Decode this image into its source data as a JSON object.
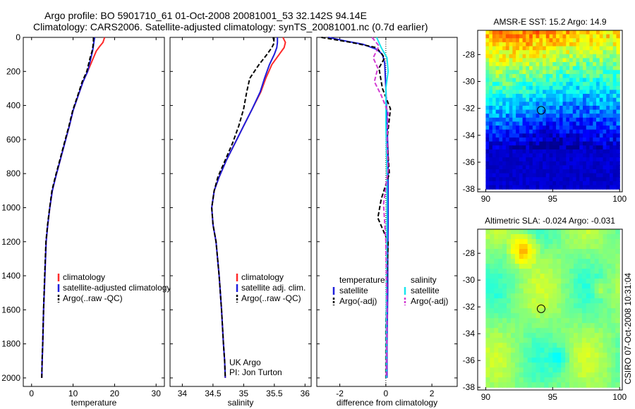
{
  "header": {
    "line1": "Argo profile: BO 5901710_61 01-Oct-2008 20081001_53 32.142S 94.14E",
    "line2": "Climatology: CARS2006. Satellite-adjusted climatology: synTS_20081001.nc (0.7d earlier)"
  },
  "colors": {
    "climatology": "#ff2a2a",
    "satellite": "#1f1fdc",
    "argo": "#000000",
    "sal_satellite": "#18e6ee",
    "sal_argo": "#d23cd2"
  },
  "credit": "UK Argo",
  "pi": "PI: Jon Turton",
  "stamp": "CSIRO 07-Oct-2008 10:31:04",
  "chart_data": [
    {
      "id": "temperature",
      "type": "line",
      "xlabel": "temperature",
      "ylabel": "",
      "xlim": [
        -2,
        32
      ],
      "ylim": [
        2050,
        0
      ],
      "xticks": [
        "0",
        "10",
        "20",
        "30"
      ],
      "xtick_values": [
        0,
        10,
        20,
        30
      ],
      "yticks": [
        "0",
        "200",
        "400",
        "600",
        "800",
        "1000",
        "1200",
        "1400",
        "1600",
        "1800",
        "2000"
      ],
      "ytick_values": [
        0,
        200,
        400,
        600,
        800,
        1000,
        1200,
        1400,
        1600,
        1800,
        2000
      ],
      "legend": [
        "climatology",
        "satellite-adjusted climatology",
        "Argo(..raw -QC)"
      ],
      "series": [
        {
          "name": "climatology",
          "color": "climatology",
          "dash": false,
          "x": [
            17.6,
            17.2,
            16.5,
            15.6,
            14.9,
            13.5,
            12.4,
            11.1,
            10.0,
            9.1,
            8.0,
            6.9,
            5.8,
            5.0,
            4.4,
            3.9,
            3.5,
            3.2,
            2.9,
            2.7,
            2.55,
            2.45
          ],
          "y": [
            0,
            30,
            50,
            80,
            120,
            200,
            260,
            350,
            430,
            520,
            620,
            720,
            820,
            900,
            1000,
            1100,
            1200,
            1400,
            1600,
            1800,
            1900,
            2000
          ]
        },
        {
          "name": "satellite-adjusted climatology",
          "color": "satellite",
          "dash": false,
          "x": [
            15.2,
            15.0,
            14.9,
            14.7,
            14.3,
            13.5,
            12.4,
            11.1,
            10.0,
            9.1,
            8.0,
            6.9,
            5.8,
            5.0,
            4.4,
            3.9,
            3.5,
            3.2,
            2.9,
            2.7,
            2.55,
            2.45
          ],
          "y": [
            0,
            30,
            50,
            80,
            120,
            200,
            260,
            350,
            430,
            520,
            620,
            720,
            820,
            900,
            1000,
            1100,
            1200,
            1400,
            1600,
            1800,
            1900,
            2000
          ]
        },
        {
          "name": "Argo(..raw -QC)",
          "color": "argo",
          "dash": true,
          "x": [
            14.9,
            14.9,
            14.8,
            14.6,
            14.1,
            13.3,
            12.2,
            11.0,
            9.9,
            9.0,
            7.9,
            6.8,
            5.7,
            4.9,
            4.35,
            3.85,
            3.45,
            3.15,
            2.88,
            2.68,
            2.53,
            2.45
          ],
          "y": [
            0,
            30,
            50,
            80,
            120,
            200,
            260,
            350,
            430,
            520,
            620,
            720,
            820,
            900,
            1000,
            1100,
            1200,
            1400,
            1600,
            1800,
            1900,
            2000
          ]
        }
      ]
    },
    {
      "id": "salinity",
      "type": "line",
      "xlabel": "salinity",
      "ylabel": "",
      "xlim": [
        33.8,
        36.1
      ],
      "ylim": [
        2050,
        0
      ],
      "xticks": [
        "34",
        "34.5",
        "35",
        "35.5",
        "36"
      ],
      "xtick_values": [
        34,
        34.5,
        35,
        35.5,
        36
      ],
      "legend": [
        "climatology",
        "satellite adj. clim.",
        "Argo(..raw -QC)"
      ],
      "series": [
        {
          "name": "climatology",
          "color": "climatology",
          "dash": false,
          "x": [
            35.64,
            35.68,
            35.66,
            35.58,
            35.46,
            35.36,
            35.28,
            35.14,
            35.0,
            34.86,
            34.72,
            34.6,
            34.52,
            34.48,
            34.5,
            34.55,
            34.6,
            34.64,
            34.67,
            34.69,
            34.7
          ],
          "y": [
            0,
            30,
            60,
            100,
            160,
            240,
            320,
            420,
            520,
            620,
            720,
            820,
            900,
            1000,
            1100,
            1200,
            1400,
            1600,
            1800,
            1900,
            2000
          ]
        },
        {
          "name": "satellite adj. clim.",
          "color": "satellite",
          "dash": false,
          "x": [
            35.55,
            35.55,
            35.54,
            35.5,
            35.42,
            35.34,
            35.27,
            35.14,
            35.0,
            34.86,
            34.72,
            34.6,
            34.52,
            34.48,
            34.5,
            34.55,
            34.6,
            34.64,
            34.67,
            34.69,
            34.7
          ],
          "y": [
            0,
            30,
            60,
            100,
            160,
            240,
            320,
            420,
            520,
            620,
            720,
            820,
            900,
            1000,
            1100,
            1200,
            1400,
            1600,
            1800,
            1900,
            2000
          ]
        },
        {
          "name": "Argo(..raw -QC)",
          "color": "argo",
          "dash": true,
          "x": [
            35.48,
            35.5,
            35.46,
            35.38,
            35.25,
            35.1,
            35.05,
            35.0,
            34.92,
            34.82,
            34.7,
            34.58,
            34.52,
            34.48,
            34.5,
            34.55,
            34.6,
            34.64,
            34.67,
            34.69,
            34.7
          ],
          "y": [
            0,
            30,
            60,
            100,
            160,
            240,
            320,
            420,
            520,
            620,
            720,
            820,
            900,
            1000,
            1100,
            1200,
            1400,
            1600,
            1800,
            1900,
            2000
          ]
        }
      ]
    },
    {
      "id": "difference",
      "type": "line",
      "xlabel": "difference from climatology",
      "ylabel": "",
      "xlim": [
        -3.0,
        3.1
      ],
      "ylim": [
        2050,
        0
      ],
      "xticks": [
        "-2",
        "0",
        "2"
      ],
      "xtick_values": [
        -2,
        0,
        2
      ],
      "legend_temp": [
        "temperature",
        "satellite",
        "Argo(-adj)"
      ],
      "legend_sal": [
        "salinity",
        "satellite",
        "Argo(-adj)"
      ],
      "series": [
        {
          "name": "temperature satellite",
          "color": "satellite",
          "dash": false,
          "x": [
            -2.5,
            -1.8,
            -1.0,
            -0.4,
            -0.15,
            -0.05,
            0.0,
            0.05,
            0.1,
            0.1,
            0.1,
            0.08,
            0.08,
            0.05,
            0.05
          ],
          "y": [
            0,
            20,
            40,
            70,
            100,
            150,
            300,
            500,
            700,
            900,
            1100,
            1300,
            1500,
            1800,
            2000
          ]
        },
        {
          "name": "temperature Argo(-adj)",
          "color": "argo",
          "dash": true,
          "x": [
            -2.8,
            -1.5,
            -0.4,
            -0.05,
            -0.3,
            -0.15,
            0.2,
            0.05,
            0.15,
            -0.2,
            -0.35,
            0.1,
            0.05,
            0.0,
            0.0
          ],
          "y": [
            0,
            30,
            60,
            120,
            180,
            300,
            420,
            600,
            800,
            950,
            1060,
            1200,
            1400,
            1700,
            2000
          ]
        },
        {
          "name": "salinity satellite",
          "color": "sal_satellite",
          "dash": false,
          "x": [
            -0.4,
            -0.2,
            0.05,
            0.1,
            0.0,
            0.0,
            0.05,
            0.05,
            0.03,
            0.02,
            0.02
          ],
          "y": [
            0,
            60,
            120,
            200,
            300,
            500,
            800,
            1100,
            1400,
            1700,
            2000
          ]
        },
        {
          "name": "salinity Argo(-adj)",
          "color": "sal_argo",
          "dash": true,
          "x": [
            -0.6,
            -0.3,
            -0.55,
            -0.35,
            -0.5,
            -0.2,
            0.1,
            0.05,
            0.1,
            -0.1,
            0.0,
            0.05,
            0.02
          ],
          "y": [
            0,
            50,
            120,
            180,
            260,
            340,
            440,
            600,
            780,
            980,
            1200,
            1600,
            2000
          ]
        }
      ]
    },
    {
      "id": "sst_map",
      "type": "heatmap",
      "title": "AMSR-E SST: 15.2 Argo: 14.9",
      "xlim": [
        89.4,
        100.2
      ],
      "ylim": [
        -38.2,
        -26.2
      ],
      "xticks": [
        "90",
        "95",
        "100"
      ],
      "xtick_values": [
        90,
        95,
        100
      ],
      "yticks": [
        "-28",
        "-30",
        "-32",
        "-34",
        "-36",
        "-38"
      ],
      "ytick_values": [
        -28,
        -30,
        -32,
        -34,
        -36,
        -38
      ],
      "data_xrange": [
        90,
        100
      ],
      "data_yrange": [
        -38,
        -26.2
      ],
      "marker": {
        "lon": 94.14,
        "lat": -32.142
      }
    },
    {
      "id": "sla_map",
      "type": "heatmap",
      "title": "Altimetric SLA: -0.024 Argo: -0.031",
      "xlim": [
        89.4,
        100.2
      ],
      "ylim": [
        -38.2,
        -26.2
      ],
      "xticks": [
        "90",
        "95",
        "100"
      ],
      "xtick_values": [
        90,
        95,
        100
      ],
      "yticks": [
        "-28",
        "-30",
        "-32",
        "-34",
        "-36",
        "-38"
      ],
      "ytick_values": [
        -28,
        -30,
        -32,
        -34,
        -36,
        -38
      ],
      "data_xrange": [
        90,
        100
      ],
      "data_yrange": [
        -38,
        -26.2
      ],
      "marker": {
        "lon": 94.14,
        "lat": -32.142
      }
    }
  ]
}
